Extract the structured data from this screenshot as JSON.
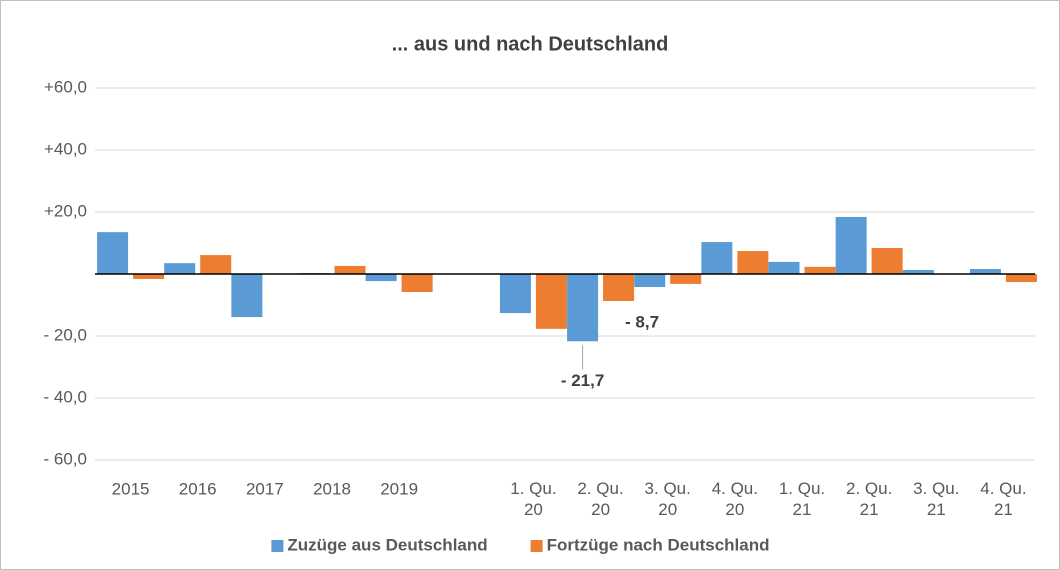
{
  "chart_data": {
    "type": "bar",
    "title": "... aus und nach Deutschland",
    "categories": [
      "2015",
      "2016",
      "2017",
      "2018",
      "2019",
      null,
      "1. Qu. 20",
      "2. Qu. 20",
      "3. Qu. 20",
      "4. Qu. 20",
      "1. Qu. 21",
      "2. Qu. 21",
      "3. Qu. 21",
      "4. Qu. 21"
    ],
    "series": [
      {
        "name": "Zuzüge aus Deutschland",
        "color": "#5b9bd5",
        "values": [
          13.5,
          3.5,
          -13.9,
          0.3,
          -2.3,
          null,
          -12.6,
          -21.7,
          -4.2,
          10.3,
          3.9,
          18.4,
          1.3,
          1.6
        ],
        "value_labels": [
          null,
          null,
          null,
          null,
          null,
          null,
          null,
          "- 21,7",
          null,
          null,
          null,
          null,
          null,
          null
        ]
      },
      {
        "name": "Fortzüge nach Deutschland",
        "color": "#ed7d31",
        "values": [
          -1.6,
          6.1,
          0,
          2.6,
          -5.8,
          null,
          -17.7,
          -8.7,
          -3.2,
          7.4,
          2.3,
          8.4,
          0,
          -2.6
        ],
        "value_labels": [
          null,
          null,
          null,
          null,
          null,
          null,
          null,
          "- 8,7",
          null,
          null,
          null,
          null,
          null,
          null
        ]
      }
    ],
    "ylim": [
      -60,
      60
    ],
    "yticks": [
      {
        "value": 60,
        "label": "+60,0"
      },
      {
        "value": 40,
        "label": "+40,0"
      },
      {
        "value": 20,
        "label": "+20,0"
      },
      {
        "value": -20,
        "label": "- 20,0"
      },
      {
        "value": -40,
        "label": "- 40,0"
      },
      {
        "value": -60,
        "label": "- 60,0"
      }
    ],
    "grid": true,
    "legend": "bottom"
  }
}
